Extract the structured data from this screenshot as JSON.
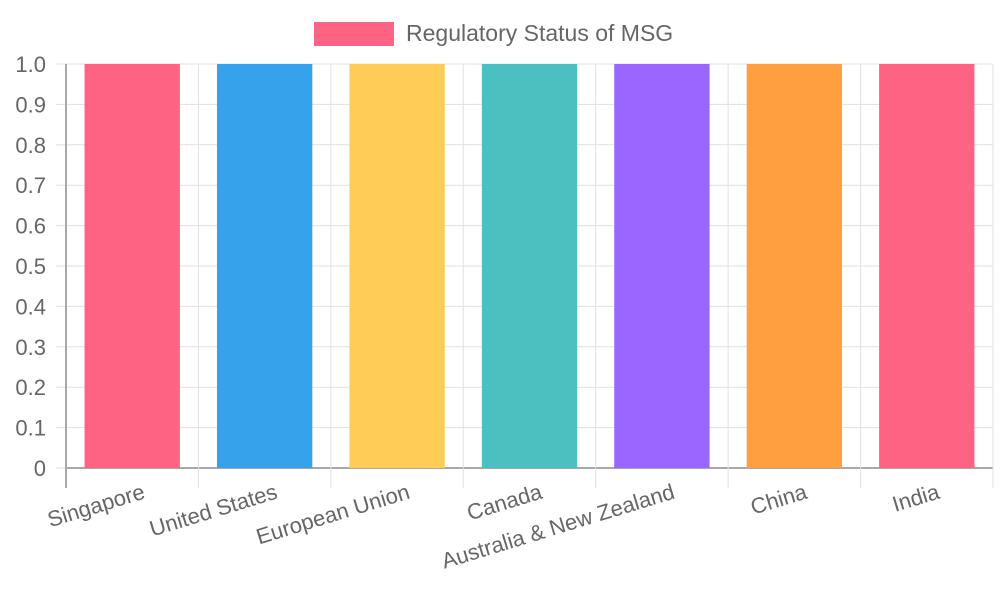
{
  "legend": {
    "label": "Regulatory Status of MSG",
    "color": "#ff6384"
  },
  "chart_data": {
    "type": "bar",
    "title": "",
    "xlabel": "",
    "ylabel": "",
    "categories": [
      "Singapore",
      "United States",
      "European Union",
      "Canada",
      "Australia & New Zealand",
      "China",
      "India"
    ],
    "series": [
      {
        "name": "Regulatory Status of MSG",
        "values": [
          1,
          1,
          1,
          1,
          1,
          1,
          1
        ]
      }
    ],
    "colors": [
      "#ff6384",
      "#36a2eb",
      "#ffcd56",
      "#4bc0c0",
      "#9966ff",
      "#ff9f40",
      "#ff6384"
    ],
    "ylim": [
      0,
      1.0
    ],
    "yticks": [
      "0",
      "0.1",
      "0.2",
      "0.3",
      "0.4",
      "0.5",
      "0.6",
      "0.7",
      "0.8",
      "0.9",
      "1.0"
    ],
    "grid": true,
    "legend_position": "top"
  }
}
